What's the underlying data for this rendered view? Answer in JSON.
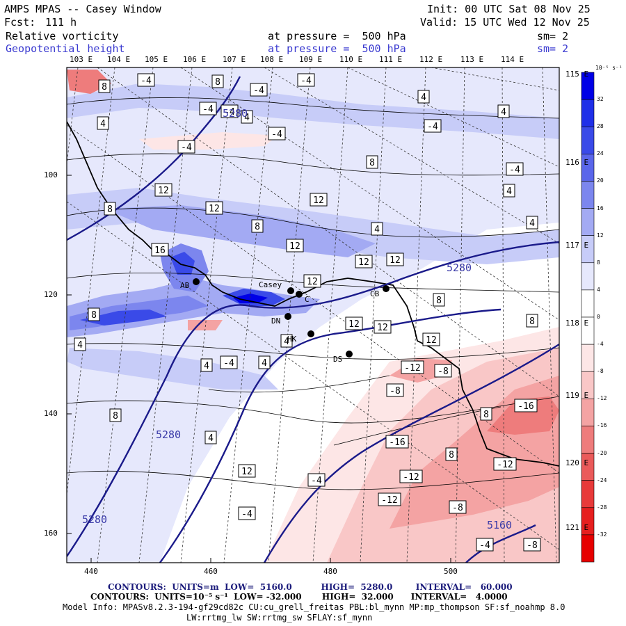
{
  "header": {
    "title": "AMPS MPAS -- Casey Window",
    "init": "Init: 00 UTC Sat 08 Nov 25",
    "fcst_label": "Fcst:",
    "fcst_value": "111 h",
    "valid": "Valid: 15 UTC Wed 12 Nov 25",
    "field1_name": "Relative vorticity",
    "field1_level": "at pressure =  500 hPa",
    "field1_sm": "sm= 2",
    "field2_name": "Geopotential height",
    "field2_level": "at pressure =  500 hPa",
    "field2_sm": "sm= 2"
  },
  "axes": {
    "top_lon_labels": [
      "103 E",
      "104 E",
      "105 E",
      "106 E",
      "107 E",
      "108 E",
      "109 E",
      "110 E",
      "111 E",
      "112 E",
      "113 E",
      "114 E"
    ],
    "right_lon_labels": [
      "115 E",
      "116 E",
      "117 E",
      "118 E",
      "119 E",
      "120 E",
      "121 E"
    ],
    "x_ticks": [
      "440",
      "460",
      "480",
      "500"
    ],
    "y_ticks": [
      "100",
      "120",
      "140",
      "160"
    ]
  },
  "colorbar": {
    "unit": "10⁻⁵ s⁻¹",
    "levels": [
      "32",
      "28",
      "24",
      "20",
      "16",
      "12",
      "8",
      "4",
      "0",
      "-4",
      "-8",
      "-12",
      "-16",
      "-20",
      "-24",
      "-28",
      "-32"
    ],
    "colors": [
      "#0000e6",
      "#1f2fe8",
      "#3a4ae8",
      "#5a66ea",
      "#7c86ee",
      "#a3aaf3",
      "#c7ccf8",
      "#e6e8fc",
      "#ffffff",
      "#ffffff",
      "#fde6e6",
      "#f9c7c7",
      "#f4a3a3",
      "#ee7c7c",
      "#ea5a5a",
      "#e83a3a",
      "#e61f1f",
      "#e60000"
    ]
  },
  "stations": [
    {
      "name": "Casey"
    },
    {
      "name": "CB"
    },
    {
      "name": "DN"
    },
    {
      "name": "DS"
    },
    {
      "name": "HK"
    },
    {
      "name": "C"
    },
    {
      "name": "AB"
    }
  ],
  "height_labels": [
    "5280",
    "5280",
    "5280",
    "5280",
    "5160"
  ],
  "vort_labels": [
    "8",
    "-4",
    "8",
    "-4",
    "-4",
    "-4",
    "-4",
    "4",
    "-4",
    "-4",
    "4",
    "4",
    "4",
    "8",
    "-4",
    "-4",
    "4",
    "4",
    "4",
    "8",
    "8",
    "12",
    "12",
    "12",
    "12",
    "8",
    "12",
    "12",
    "8",
    "12",
    "12",
    "12",
    "16",
    "12",
    "8",
    "4",
    "4",
    "-4",
    "4",
    "-12",
    "-8",
    "8",
    "4",
    "12",
    "-4",
    "8",
    "-16",
    "-8",
    "-16",
    "-12",
    "-12",
    "-12",
    "-8",
    "-4",
    "-4",
    "8",
    "-8",
    "4"
  ],
  "footer": {
    "line1": "CONTOURS:  UNITS=m  LOW=  5160.0          HIGH=  5280.0        INTERVAL=   60.000",
    "line2": "CONTOURS:  UNITS=10⁻⁵ s⁻¹  LOW= -32.000       HIGH=  32.000      INTERVAL=   4.0000",
    "line3": "Model Info: MPASv8.2.3-194-gf29cd82c CU:cu_grell_freitas PBL:bl_mynn MP:mp_thompson SF:sf_noahmp 8.0",
    "line4": "LW:rrtmg_lw SW:rrtmg_sw SFLAY:sf_mynn"
  }
}
